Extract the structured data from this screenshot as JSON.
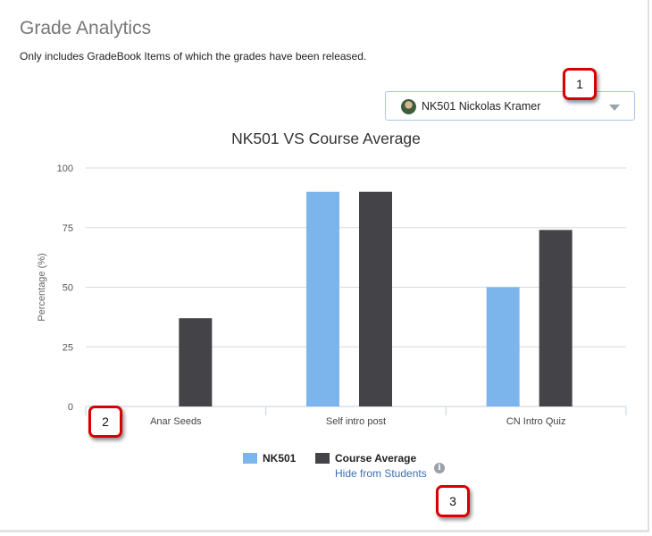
{
  "header": {
    "title": "Grade Analytics",
    "subtitle": "Only includes GradeBook Items of which the grades have been released."
  },
  "student_select": {
    "selected": "NK501 Nickolas Kramer",
    "avatar_icon": "student-avatar"
  },
  "callouts": {
    "c1": "1",
    "c2": "2",
    "c3": "3"
  },
  "chart_data": {
    "type": "bar",
    "title": "NK501 VS Course Average",
    "ylabel": "Percentage (%)",
    "xlabel": "",
    "categories": [
      "Anar Seeds",
      "Self intro post",
      "CN Intro Quiz"
    ],
    "series": [
      {
        "name": "NK501",
        "values": [
          0,
          90,
          50
        ],
        "color": "#7cb5ec"
      },
      {
        "name": "Course Average",
        "values": [
          37,
          90,
          74
        ],
        "color": "#434348"
      }
    ],
    "ylim": [
      0,
      100
    ],
    "yticks": [
      0,
      25,
      50,
      75,
      100
    ],
    "grid": true,
    "legend": "bottom-center"
  },
  "footer": {
    "hide_link": "Hide from Students",
    "info_icon": "i"
  }
}
